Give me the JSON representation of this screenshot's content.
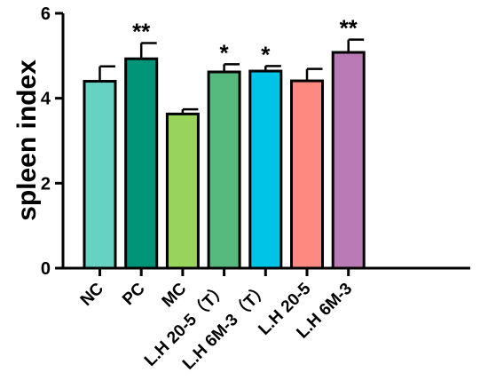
{
  "chart_data": {
    "type": "bar",
    "ylabel": "spleen index",
    "ylim": [
      0,
      6
    ],
    "yticks": [
      "0",
      "2",
      "4",
      "6"
    ],
    "categories": [
      "NC",
      "PC",
      "MC",
      "L.H 20-5（T）",
      "L.H 6M-3（T）",
      "L.H 20-5",
      "L.H 6M-3"
    ],
    "values": [
      4.4,
      4.93,
      3.63,
      4.62,
      4.64,
      4.41,
      5.08
    ],
    "errors": [
      0.35,
      0.37,
      0.11,
      0.18,
      0.12,
      0.28,
      0.3
    ],
    "significance": [
      "",
      "**",
      "",
      "*",
      "*",
      "",
      "**"
    ],
    "colors": [
      "#66d2c3",
      "#009478",
      "#98d45c",
      "#56b97e",
      "#00c3e8",
      "#fd8a80",
      "#ba7ab6"
    ],
    "grid": false,
    "legend": "none"
  }
}
